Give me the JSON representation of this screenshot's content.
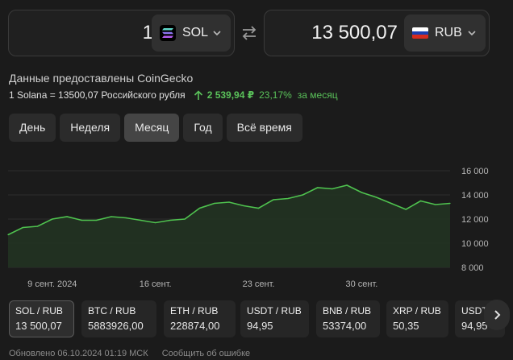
{
  "converter": {
    "from": {
      "amount": "1",
      "currency": "SOL",
      "icon": "solana-logo-icon"
    },
    "swap_icon": "swap-arrows-icon",
    "to": {
      "amount": "13 500,07",
      "currency": "RUB",
      "icon": "russian-flag-icon"
    }
  },
  "info": {
    "provider": "Данные предоставлены CoinGecko",
    "rate": "1 Solana = 13500,07 Российского рубля",
    "change_abs": "2 539,94 ₽",
    "change_pct": "23,17%",
    "change_period": "за месяц"
  },
  "tabs": [
    {
      "label": "День",
      "active": false
    },
    {
      "label": "Неделя",
      "active": false
    },
    {
      "label": "Месяц",
      "active": true
    },
    {
      "label": "Год",
      "active": false
    },
    {
      "label": "Всё время",
      "active": false
    }
  ],
  "colors": {
    "background": "#1b1b1b",
    "accent_green": "#5ac25a",
    "chart_line": "#4fc34f",
    "chart_fill": "#223322"
  },
  "chart_data": {
    "type": "area",
    "x": [
      "2024-09-06",
      "2024-09-07",
      "2024-09-08",
      "2024-09-09",
      "2024-09-10",
      "2024-09-11",
      "2024-09-12",
      "2024-09-13",
      "2024-09-14",
      "2024-09-15",
      "2024-09-16",
      "2024-09-17",
      "2024-09-18",
      "2024-09-19",
      "2024-09-20",
      "2024-09-21",
      "2024-09-22",
      "2024-09-23",
      "2024-09-24",
      "2024-09-25",
      "2024-09-26",
      "2024-09-27",
      "2024-09-28",
      "2024-09-29",
      "2024-09-30",
      "2024-10-01",
      "2024-10-02",
      "2024-10-03",
      "2024-10-04",
      "2024-10-05",
      "2024-10-06"
    ],
    "values": [
      10700,
      11300,
      11400,
      12000,
      12200,
      11900,
      11900,
      12200,
      12100,
      11900,
      11700,
      11900,
      12000,
      12900,
      13300,
      13400,
      13100,
      12900,
      13600,
      13700,
      14000,
      14600,
      14500,
      14800,
      14200,
      13800,
      13300,
      12800,
      13500,
      13200,
      13300
    ],
    "x_ticks": [
      "9 сент. 2024",
      "16 сент.",
      "23 сент.",
      "30 сент."
    ],
    "y_ticks": [
      "8 000",
      "10 000",
      "12 000",
      "14 000",
      "16 000"
    ],
    "ylim": [
      8000,
      16000
    ],
    "y_axis_side": "right",
    "grid": "horizontal"
  },
  "pairs": [
    {
      "name": "SOL / RUB",
      "value": "13 500,07",
      "active": true
    },
    {
      "name": "BTC / RUB",
      "value": "5883926,00",
      "active": false
    },
    {
      "name": "ETH / RUB",
      "value": "228874,00",
      "active": false
    },
    {
      "name": "USDT / RUB",
      "value": "94,95",
      "active": false
    },
    {
      "name": "BNB / RUB",
      "value": "53374,00",
      "active": false
    },
    {
      "name": "XRP / RUB",
      "value": "50,35",
      "active": false
    },
    {
      "name": "USDT / RUB",
      "value": "94,95",
      "active": false
    }
  ],
  "next_icon": "chevron-right-icon",
  "footer": {
    "updated": "Обновлено 06.10.2024 01:19 МСК",
    "report": "Сообщить об ошибке"
  }
}
